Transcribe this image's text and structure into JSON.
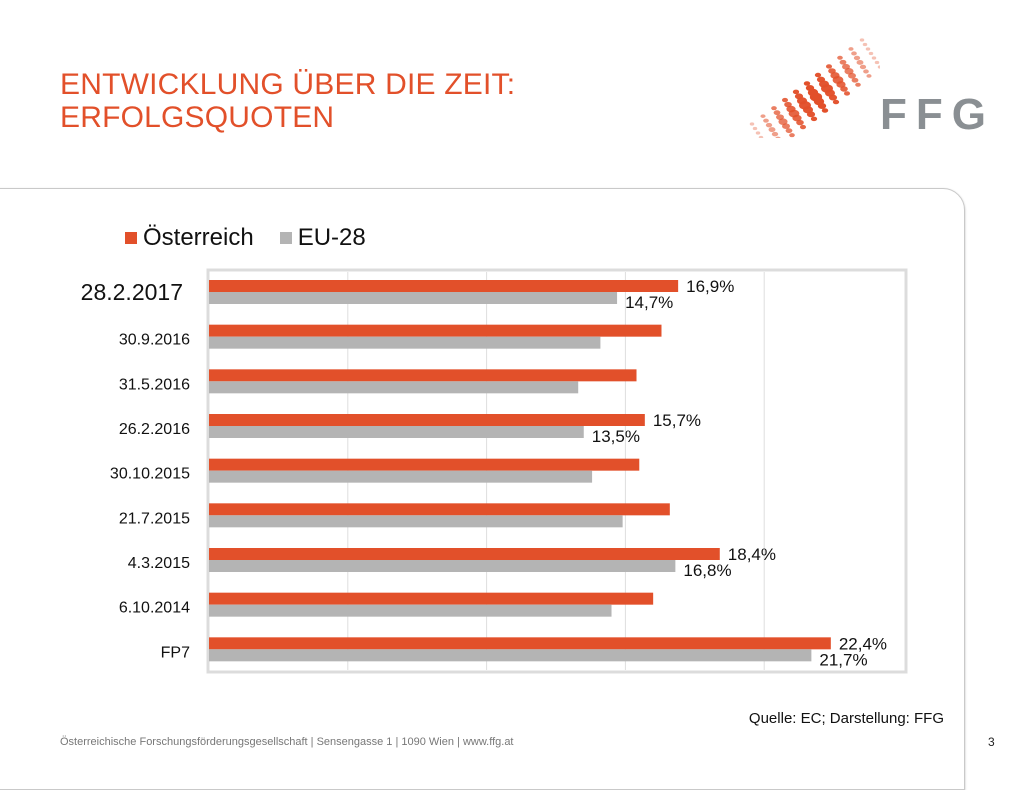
{
  "header": {
    "title_line1": "ENTWICKLUNG ÜBER DIE ZEIT:",
    "title_line2": "ERFOLGSQUOTEN",
    "logo_text": "FFG"
  },
  "colors": {
    "accent": "#e2502a",
    "secondary": "#b4b4b4",
    "grid": "#dedede",
    "logo_gray": "#8a8f93"
  },
  "chart_data": {
    "type": "bar",
    "orientation": "horizontal",
    "categories": [
      "28.2.2017",
      "30.9.2016",
      "31.5.2016",
      "26.2.2016",
      "30.10.2015",
      "21.7.2015",
      "4.3.2015",
      "6.10.2014",
      "FP7"
    ],
    "series": [
      {
        "name": "Österreich",
        "color": "#e2502a",
        "values": [
          16.9,
          16.3,
          15.4,
          15.7,
          15.5,
          16.6,
          18.4,
          16.0,
          22.4
        ],
        "labels": [
          "16,9%",
          "",
          "",
          "15,7%",
          "",
          "",
          "18,4%",
          "",
          "22,4%"
        ]
      },
      {
        "name": "EU-28",
        "color": "#b4b4b4",
        "values": [
          14.7,
          14.1,
          13.3,
          13.5,
          13.8,
          14.9,
          16.8,
          14.5,
          21.7
        ],
        "labels": [
          "14,7%",
          "",
          "",
          "13,5%",
          "",
          "",
          "16,8%",
          "",
          "21,7%"
        ]
      }
    ],
    "xlim": [
      0,
      25
    ],
    "grid": true,
    "legend_position": "top-left"
  },
  "footer": {
    "source": "Quelle: EC; Darstellung: FFG",
    "address": "Österreichische Forschungsförderungsgesellschaft | Sensengasse 1 | 1090 Wien | www.ffg.at",
    "page": "3"
  }
}
